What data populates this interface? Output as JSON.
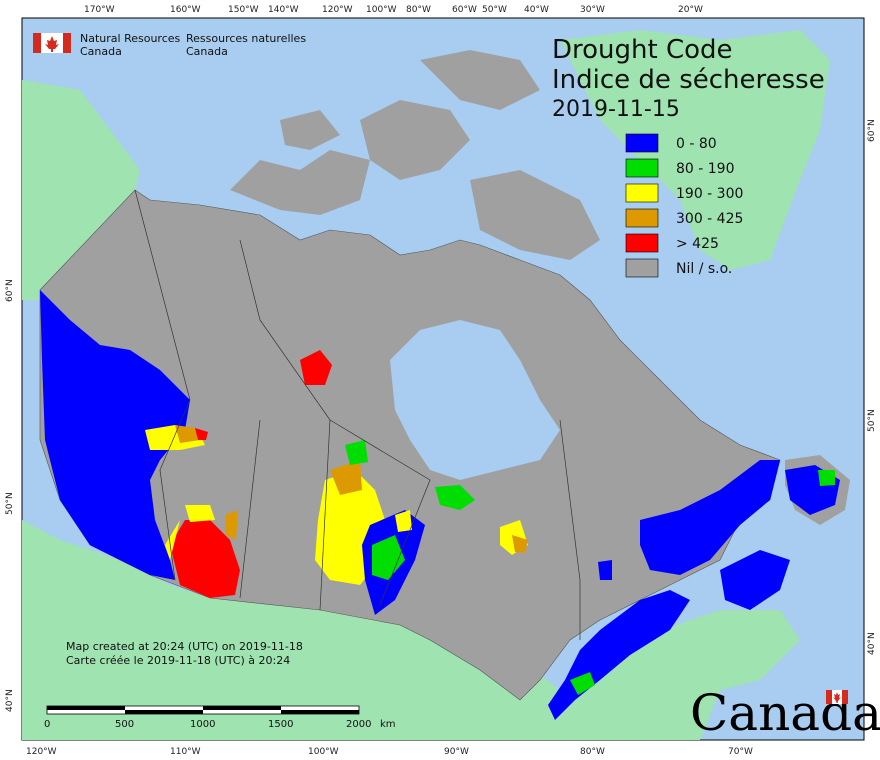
{
  "map": {
    "title_en": "Drought Code",
    "title_fr": "Indice de sécheresse",
    "date": "2019-11-15",
    "agency_en_line1": "Natural Resources",
    "agency_en_line2": "Canada",
    "agency_fr_line1": "Ressources naturelles",
    "agency_fr_line2": "Canada",
    "note_en": "Map created at 20:24 (UTC) on 2019-11-18",
    "note_fr": "Carte créée le 2019-11-18 (UTC) à 20:24",
    "wordmark": "Canada",
    "legend": [
      {
        "label": "0 - 80",
        "color": "#0000ff"
      },
      {
        "label": "80 - 190",
        "color": "#00dd00"
      },
      {
        "label": "190 - 300",
        "color": "#ffff00"
      },
      {
        "label": "300 - 425",
        "color": "#dd9900"
      },
      {
        "label": "> 425",
        "color": "#ff0000"
      },
      {
        "label": "Nil / s.o.",
        "color": "#a0a0a0"
      }
    ],
    "top_ticks": [
      "170°W",
      "160°W",
      "150°W",
      "140°W",
      "120°W",
      "100°W",
      "80°W",
      "60°W",
      "50°W",
      "40°W",
      "30°W",
      "20°W"
    ],
    "bottom_ticks": [
      "120°W",
      "110°W",
      "100°W",
      "90°W",
      "80°W",
      "70°W"
    ],
    "left_ticks": [
      "60°N",
      "50°N",
      "40°N"
    ],
    "right_ticks": [
      "60°N",
      "50°N",
      "40°N"
    ],
    "scale_bar": {
      "labels": [
        "0",
        "500",
        "1000",
        "1500",
        "2000"
      ],
      "unit": "km"
    },
    "colors": {
      "ocean": "#a8cdf0",
      "land_foreign": "#9ee3b0",
      "nil": "#a0a0a0",
      "water_inland": "#a8cdf0"
    }
  }
}
